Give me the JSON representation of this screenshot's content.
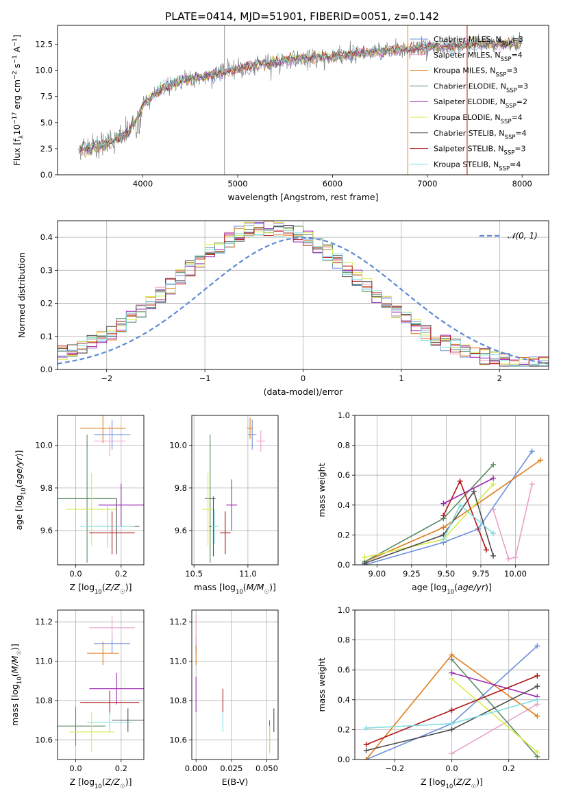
{
  "figure_title": "PLATE=0414, MJD=51901, FIBERID=0051, z=0.142",
  "models": [
    {
      "name": "Chabrier MILES",
      "nssp": "3",
      "color": "#6a8fdb"
    },
    {
      "name": "Salpeter MILES",
      "nssp": "4",
      "color": "#e8a1c9"
    },
    {
      "name": "Kroupa MILES",
      "nssp": "3",
      "color": "#e07b1a"
    },
    {
      "name": "Chabrier ELODIE",
      "nssp": "3",
      "color": "#5b8a63"
    },
    {
      "name": "Salpeter ELODIE",
      "nssp": "2",
      "color": "#9c27b0"
    },
    {
      "name": "Kroupa ELODIE",
      "nssp": "4",
      "color": "#d6ec4a"
    },
    {
      "name": "Chabrier STELIB",
      "nssp": "4",
      "color": "#4d4d4d"
    },
    {
      "name": "Salpeter STELIB",
      "nssp": "3",
      "color": "#b01515"
    },
    {
      "name": "Kroupa STELIB",
      "nssp": "4",
      "color": "#7fdde0"
    }
  ],
  "chart_data": [
    {
      "id": "spectrum",
      "type": "line",
      "xlabel": "wavelength [Angstrom, rest frame]",
      "ylabel": "Flux [f_λ10^−17 erg cm^−2 s^−1 A^−1]",
      "xlim": [
        3100,
        8280
      ],
      "ylim": [
        0,
        14.3
      ],
      "xticks": [
        "4000",
        "5000",
        "6000",
        "7000",
        "8000"
      ],
      "yticks": [
        "0.0",
        "2.5",
        "5.0",
        "7.5",
        "10.0",
        "12.5"
      ],
      "legend": "upper right",
      "continuum": {
        "x": [
          3300,
          3500,
          3700,
          3850,
          3950,
          4000,
          4200,
          4400,
          4600,
          4800,
          5000,
          5200,
          5400,
          5600,
          5800,
          6000,
          6200,
          6400,
          6600,
          6800,
          7000,
          7200,
          7400,
          7600,
          7800,
          8000
        ],
        "y": [
          2.3,
          2.6,
          3.3,
          4.1,
          5.5,
          6.8,
          8.2,
          8.9,
          9.3,
          9.7,
          10.1,
          10.5,
          10.8,
          11.0,
          11.2,
          11.3,
          11.5,
          11.7,
          11.9,
          12.0,
          12.2,
          12.3,
          12.4,
          12.5,
          12.5,
          12.6
        ]
      },
      "observed_range": [
        3320,
        8000
      ]
    },
    {
      "id": "residuals",
      "type": "line",
      "xlabel": "(data-model)/error",
      "ylabel": "Normed distribution",
      "xlim": [
        -2.5,
        2.5
      ],
      "ylim": [
        0,
        0.45
      ],
      "xticks": [
        "−2",
        "−1",
        "0",
        "1",
        "2"
      ],
      "yticks": [
        "0.0",
        "0.1",
        "0.2",
        "0.3",
        "0.4"
      ],
      "reference_label": "𝒩(0, 1)",
      "reference_color": "#5b8ad6",
      "hist_bins": [
        -2.5,
        2.5,
        50
      ]
    },
    {
      "id": "age-vs-Z",
      "type": "scatter",
      "xlabel": "Z [log₁₀(Z/Z☉)]",
      "ylabel": "age  [log₁₀(age/yr)]",
      "xlim": [
        -0.08,
        0.3
      ],
      "ylim": [
        9.44,
        10.14
      ],
      "xticks": [
        "0.0",
        "0.2"
      ],
      "yticks": [
        "9.6",
        "9.8",
        "10.0"
      ],
      "points": [
        {
          "model": 0,
          "x": 0.16,
          "y": 10.05,
          "xerr": 0.08,
          "yerr": 0.07
        },
        {
          "model": 1,
          "x": 0.15,
          "y": 10.02,
          "xerr": 0.07,
          "yerr": 0.07
        },
        {
          "model": 2,
          "x": 0.12,
          "y": 10.08,
          "xerr": 0.1,
          "yerr": 0.07
        },
        {
          "model": 3,
          "x": 0.05,
          "y": 9.75,
          "xerr": 0.13,
          "yerr": 0.3
        },
        {
          "model": 4,
          "x": 0.2,
          "y": 9.72,
          "xerr": 0.1,
          "yerr": 0.1
        },
        {
          "model": 5,
          "x": 0.07,
          "y": 9.7,
          "xerr": 0.11,
          "yerr": 0.17
        },
        {
          "model": 6,
          "x": 0.18,
          "y": 9.62,
          "xerr": 0.1,
          "yerr": 0.13
        },
        {
          "model": 7,
          "x": 0.16,
          "y": 9.59,
          "xerr": 0.1,
          "yerr": 0.1
        },
        {
          "model": 8,
          "x": 0.14,
          "y": 9.62,
          "xerr": 0.12,
          "yerr": 0.1
        }
      ]
    },
    {
      "id": "age-vs-mass",
      "type": "scatter",
      "xlabel": "mass [log₁₀(M/M☉)]",
      "ylabel": "",
      "xlim": [
        10.48,
        11.28
      ],
      "ylim": [
        9.44,
        10.14
      ],
      "xticks": [
        "10.5",
        "11.0"
      ],
      "yticks": [
        "9.6",
        "9.8",
        "10.0"
      ],
      "points": [
        {
          "model": 0,
          "x": 11.04,
          "y": 10.05,
          "xerr": 0.04,
          "yerr": 0.07
        },
        {
          "model": 1,
          "x": 11.12,
          "y": 10.02,
          "xerr": 0.04,
          "yerr": 0.05
        },
        {
          "model": 2,
          "x": 11.02,
          "y": 10.08,
          "xerr": 0.03,
          "yerr": 0.05
        },
        {
          "model": 3,
          "x": 10.65,
          "y": 9.75,
          "xerr": 0.05,
          "yerr": 0.3
        },
        {
          "model": 4,
          "x": 10.85,
          "y": 9.72,
          "xerr": 0.05,
          "yerr": 0.12
        },
        {
          "model": 5,
          "x": 10.63,
          "y": 9.7,
          "xerr": 0.05,
          "yerr": 0.17
        },
        {
          "model": 6,
          "x": 10.68,
          "y": 9.62,
          "xerr": 0.04,
          "yerr": 0.14
        },
        {
          "model": 7,
          "x": 10.79,
          "y": 9.59,
          "xerr": 0.05,
          "yerr": 0.1
        },
        {
          "model": 8,
          "x": 10.69,
          "y": 9.62,
          "xerr": 0.03,
          "yerr": 0.08
        }
      ]
    },
    {
      "id": "weight-vs-age",
      "type": "line",
      "xlabel": "age  [log₁₀(age/yr)]",
      "ylabel": "mass weight",
      "xlim": [
        8.84,
        10.24
      ],
      "ylim": [
        0,
        1
      ],
      "xticks": [
        "9.00",
        "9.25",
        "9.50",
        "9.75",
        "10.00"
      ],
      "yticks": [
        "0.0",
        "0.2",
        "0.4",
        "0.6",
        "0.8",
        "1.0"
      ],
      "series": [
        {
          "model": 0,
          "x": [
            8.91,
            9.48,
            9.73,
            10.12
          ],
          "y": [
            0.0,
            0.15,
            0.24,
            0.76
          ]
        },
        {
          "model": 1,
          "x": [
            9.84,
            9.95,
            10.0,
            10.12
          ],
          "y": [
            0.37,
            0.04,
            0.05,
            0.54
          ]
        },
        {
          "model": 2,
          "x": [
            8.91,
            9.48,
            10.18
          ],
          "y": [
            0.02,
            0.25,
            0.7
          ]
        },
        {
          "model": 3,
          "x": [
            8.91,
            9.48,
            9.84
          ],
          "y": [
            0.02,
            0.31,
            0.67
          ]
        },
        {
          "model": 4,
          "x": [
            9.48,
            9.84
          ],
          "y": [
            0.41,
            0.58
          ]
        },
        {
          "model": 5,
          "x": [
            8.91,
            9.48,
            9.84
          ],
          "y": [
            0.05,
            0.17,
            0.54
          ]
        },
        {
          "model": 6,
          "x": [
            8.91,
            9.48,
            9.7,
            9.84
          ],
          "y": [
            0.01,
            0.2,
            0.49,
            0.06
          ]
        },
        {
          "model": 7,
          "x": [
            9.48,
            9.6,
            9.79
          ],
          "y": [
            0.33,
            0.56,
            0.1
          ]
        },
        {
          "model": 8,
          "x": [
            9.48,
            9.6,
            9.84
          ],
          "y": [
            0.17,
            0.4,
            0.21
          ]
        }
      ]
    },
    {
      "id": "mass-vs-Z",
      "type": "scatter",
      "xlabel": "Z [log₁₀(Z/Z☉)]",
      "ylabel": "mass [log₁₀(M/M☉)]",
      "xlim": [
        -0.08,
        0.3
      ],
      "ylim": [
        10.5,
        11.26
      ],
      "xticks": [
        "0.0",
        "0.2"
      ],
      "yticks": [
        "10.6",
        "10.8",
        "11.0",
        "11.2"
      ],
      "points": [
        {
          "model": 0,
          "x": 0.16,
          "y": 11.09,
          "xerr": 0.08,
          "yerr": 0.05
        },
        {
          "model": 1,
          "x": 0.16,
          "y": 11.17,
          "xerr": 0.1,
          "yerr": 0.06
        },
        {
          "model": 2,
          "x": 0.12,
          "y": 11.04,
          "xerr": 0.07,
          "yerr": 0.06
        },
        {
          "model": 3,
          "x": 0.0,
          "y": 10.67,
          "xerr": 0.13,
          "yerr": 0.1
        },
        {
          "model": 4,
          "x": 0.18,
          "y": 10.86,
          "xerr": 0.12,
          "yerr": 0.08
        },
        {
          "model": 5,
          "x": 0.07,
          "y": 10.64,
          "xerr": 0.1,
          "yerr": 0.1
        },
        {
          "model": 6,
          "x": 0.23,
          "y": 10.7,
          "xerr": 0.07,
          "yerr": 0.06
        },
        {
          "model": 7,
          "x": 0.15,
          "y": 10.79,
          "xerr": 0.13,
          "yerr": 0.06
        },
        {
          "model": 8,
          "x": 0.15,
          "y": 10.69,
          "xerr": 0.1,
          "yerr": 0.05
        }
      ]
    },
    {
      "id": "mass-vs-ebv",
      "type": "scatter",
      "xlabel": "E(B-V)",
      "ylabel": "",
      "xlim": [
        -0.003,
        0.058
      ],
      "ylim": [
        10.5,
        11.26
      ],
      "xticks": [
        "0.000",
        "0.025",
        "0.050"
      ],
      "yticks": [
        "10.6",
        "10.8",
        "11.0",
        "11.2"
      ],
      "points": [
        {
          "model": 0,
          "x": 0.0,
          "y": 11.08,
          "xerr": 0,
          "yerr": 0.04
        },
        {
          "model": 1,
          "x": 0.0,
          "y": 11.16,
          "xerr": 0,
          "yerr": 0.08
        },
        {
          "model": 2,
          "x": 0.0,
          "y": 11.03,
          "xerr": 0,
          "yerr": 0.05
        },
        {
          "model": 3,
          "x": 0.052,
          "y": 10.62,
          "xerr": 0,
          "yerr": 0.08
        },
        {
          "model": 4,
          "x": 0.0,
          "y": 10.83,
          "xerr": 0,
          "yerr": 0.09
        },
        {
          "model": 5,
          "x": 0.052,
          "y": 10.6,
          "xerr": 0,
          "yerr": 0.07
        },
        {
          "model": 6,
          "x": 0.055,
          "y": 10.7,
          "xerr": 0,
          "yerr": 0.06
        },
        {
          "model": 7,
          "x": 0.019,
          "y": 10.8,
          "xerr": 0,
          "yerr": 0.06
        },
        {
          "model": 8,
          "x": 0.019,
          "y": 10.69,
          "xerr": 0,
          "yerr": 0.05
        }
      ]
    },
    {
      "id": "weight-vs-Z",
      "type": "line",
      "xlabel": "Z [log₁₀(Z/Z☉)]",
      "ylabel": "mass weight",
      "xlim": [
        -0.34,
        0.34
      ],
      "ylim": [
        0,
        1
      ],
      "xticks": [
        "−0.2",
        "0.0",
        "0.2"
      ],
      "yticks": [
        "0.0",
        "0.2",
        "0.4",
        "0.6",
        "0.8",
        "1.0"
      ],
      "series": [
        {
          "model": 0,
          "x": [
            -0.3,
            0.0,
            0.3
          ],
          "y": [
            0.0,
            0.24,
            0.76
          ]
        },
        {
          "model": 1,
          "x": [
            0.0,
            0.3
          ],
          "y": [
            0.04,
            0.37
          ]
        },
        {
          "model": 2,
          "x": [
            -0.3,
            0.0,
            0.3
          ],
          "y": [
            0.0,
            0.7,
            0.29
          ]
        },
        {
          "model": 3,
          "x": [
            0.0,
            0.3
          ],
          "y": [
            0.67,
            0.02
          ]
        },
        {
          "model": 4,
          "x": [
            0.0,
            0.3
          ],
          "y": [
            0.58,
            0.42
          ]
        },
        {
          "model": 5,
          "x": [
            0.0,
            0.3
          ],
          "y": [
            0.54,
            0.05
          ]
        },
        {
          "model": 6,
          "x": [
            -0.3,
            0.0,
            0.3
          ],
          "y": [
            0.06,
            0.2,
            0.49
          ]
        },
        {
          "model": 7,
          "x": [
            -0.3,
            0.0,
            0.3
          ],
          "y": [
            0.1,
            0.33,
            0.56
          ]
        },
        {
          "model": 8,
          "x": [
            -0.3,
            0.0,
            0.3
          ],
          "y": [
            0.21,
            0.24,
            0.4
          ]
        }
      ]
    }
  ]
}
